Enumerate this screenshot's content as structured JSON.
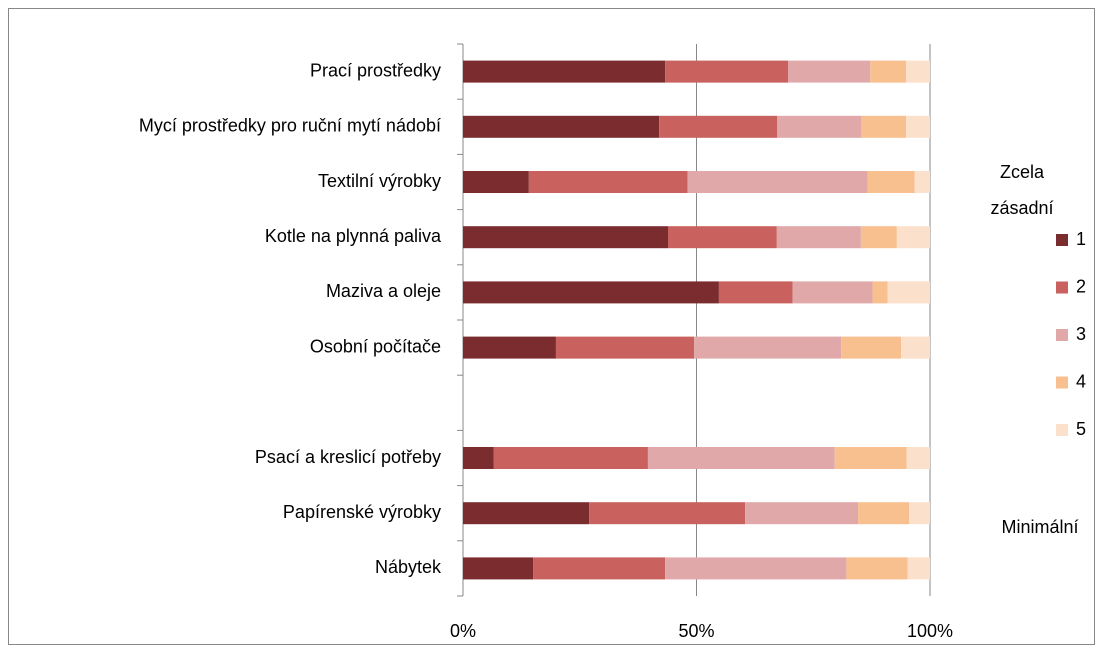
{
  "chart_data": {
    "type": "stacked-barh",
    "categories": [
      "Prací prostředky",
      "Mycí prostředky pro ruční mytí nádobí",
      "Textilní výrobky",
      "Kotle na plynná paliva",
      "Maziva a oleje",
      "Osobní počítače",
      null,
      "Psací a kreslicí potřeby",
      "Papírenské výrobky",
      "Nábytek"
    ],
    "series": [
      {
        "name": "1",
        "color": "#7b2c2e",
        "values": [
          43.3,
          42.0,
          14.1,
          43.9,
          54.8,
          19.9,
          null,
          6.6,
          27.0,
          15.0
        ]
      },
      {
        "name": "2",
        "color": "#c9615f",
        "values": [
          26.3,
          25.3,
          34.0,
          23.3,
          15.8,
          29.6,
          null,
          33.0,
          33.4,
          28.3
        ]
      },
      {
        "name": "3",
        "color": "#e0a8a8",
        "values": [
          17.6,
          18.0,
          38.5,
          18.0,
          17.1,
          31.5,
          null,
          40.0,
          24.2,
          38.8
        ]
      },
      {
        "name": "4",
        "color": "#f8bf8f",
        "values": [
          7.7,
          9.6,
          10.1,
          7.7,
          3.2,
          12.8,
          null,
          15.4,
          10.9,
          13.1
        ]
      },
      {
        "name": "5",
        "color": "#fbe0cc",
        "values": [
          5.1,
          5.1,
          3.3,
          7.1,
          9.1,
          6.2,
          null,
          5.0,
          4.5,
          4.8
        ]
      }
    ],
    "xlim": [
      0,
      100
    ],
    "xticks": [
      {
        "value": 0,
        "label": "0%"
      },
      {
        "value": 50,
        "label": "50%"
      },
      {
        "value": 100,
        "label": "100%"
      }
    ],
    "grid": true,
    "legend_title": "Zcela zásadní",
    "legend_footer": "Minimální",
    "legend": "right"
  }
}
